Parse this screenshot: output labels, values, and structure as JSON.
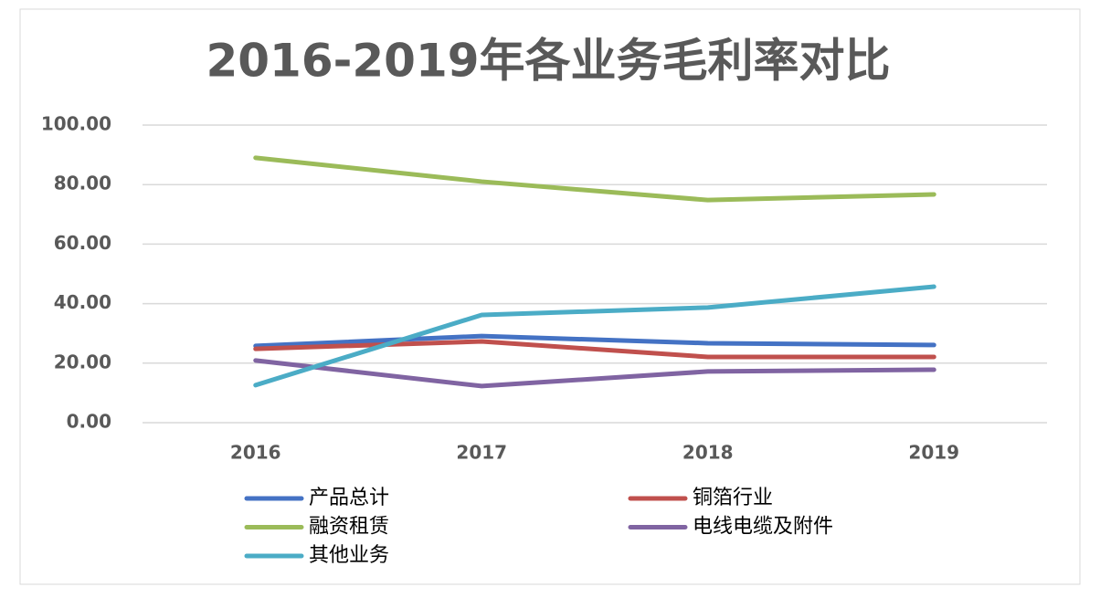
{
  "chart_data": {
    "type": "line",
    "title": "2016-2019年各业务毛利率对比",
    "categories": [
      "2016",
      "2017",
      "2018",
      "2019"
    ],
    "series": [
      {
        "name": "产品总计",
        "color": "#4472c4",
        "values": [
          25.8,
          29.1,
          26.7,
          26.1
        ]
      },
      {
        "name": "铜箔行业",
        "color": "#c0504d",
        "values": [
          24.8,
          27.3,
          22.1,
          22.1
        ]
      },
      {
        "name": "融资租赁",
        "color": "#9bbb59",
        "values": [
          89.0,
          81.0,
          74.8,
          76.7
        ]
      },
      {
        "name": "电线电缆及附件",
        "color": "#8064a2",
        "values": [
          20.9,
          12.3,
          17.2,
          17.8
        ]
      },
      {
        "name": "其他业务",
        "color": "#4bacc6",
        "values": [
          12.6,
          36.2,
          38.7,
          45.7
        ]
      }
    ],
    "ylim": [
      0,
      100
    ],
    "yticks": [
      {
        "value": 0,
        "label": "0.00"
      },
      {
        "value": 20,
        "label": "20.00"
      },
      {
        "value": 40,
        "label": "40.00"
      },
      {
        "value": 60,
        "label": "60.00"
      },
      {
        "value": 80,
        "label": "80.00"
      },
      {
        "value": 100,
        "label": "100.00"
      }
    ],
    "grid": true,
    "legend": "bottom"
  }
}
